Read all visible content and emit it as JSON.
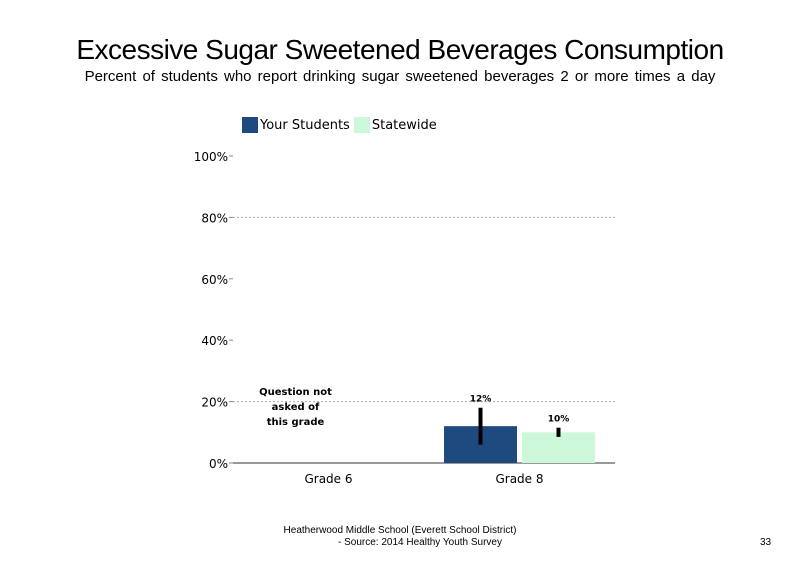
{
  "slide": {
    "title": "Excessive Sugar Sweetened Beverages Consumption",
    "subtitle": "Percent of students who report drinking sugar sweetened beverages 2 or more times a day",
    "footer_line1": "Heatherwood Middle School (Everett School District)",
    "footer_line2": "- Source: 2014 Healthy Youth Survey",
    "page_number": "33"
  },
  "chart_data": {
    "type": "bar",
    "categories": [
      "Grade 6",
      "Grade 8"
    ],
    "series": [
      {
        "name": "Your Students",
        "color": "#1f4a7f",
        "values": [
          null,
          12
        ],
        "labels": [
          "",
          "12%"
        ],
        "ci": [
          null,
          [
            6,
            18
          ]
        ]
      },
      {
        "name": "Statewide",
        "color": "#ccf7d9",
        "values": [
          null,
          10
        ],
        "labels": [
          "",
          "10%"
        ],
        "ci": [
          null,
          [
            8.5,
            11.5
          ]
        ]
      }
    ],
    "ylim": [
      0,
      100
    ],
    "yticks": [
      "0%",
      "20%",
      "40%",
      "60%",
      "80%",
      "100%"
    ],
    "ytick_values": [
      0,
      20,
      40,
      60,
      80,
      100
    ],
    "gridlines": [
      20,
      80
    ],
    "annotation": [
      "Question not",
      "asked of",
      "this grade"
    ],
    "legend_position": "top"
  }
}
